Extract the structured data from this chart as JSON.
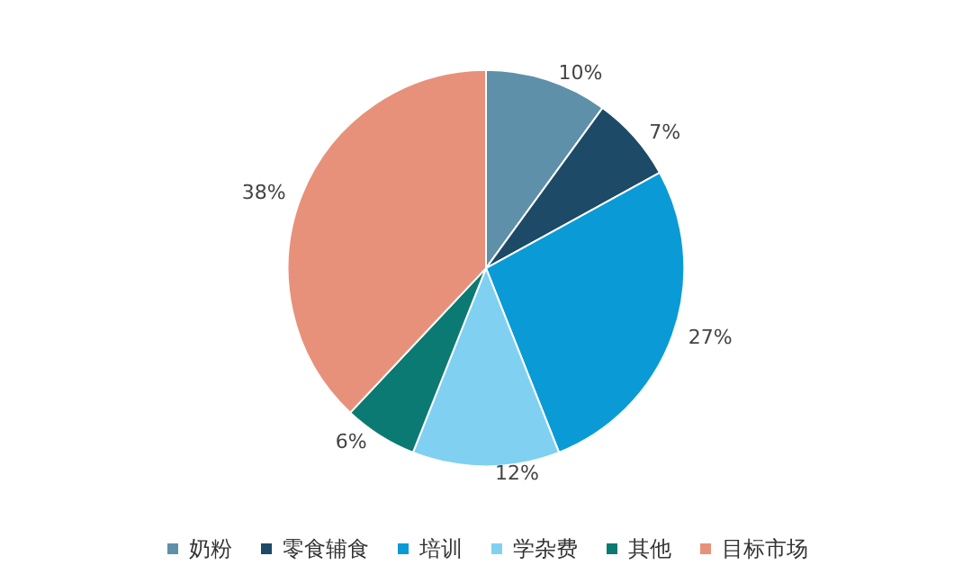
{
  "chart_data": {
    "type": "pie",
    "categories": [
      "奶粉",
      "零食辅食",
      "培训",
      "学杂费",
      "其他",
      "目标市场"
    ],
    "values": [
      10,
      7,
      27,
      12,
      6,
      38
    ],
    "colors": [
      "#5f90aa",
      "#1d4a66",
      "#0a9bd6",
      "#80d0f2",
      "#0b7a72",
      "#e8917a"
    ],
    "value_labels": [
      "10%",
      "7%",
      "27%",
      "12%",
      "6%",
      "38%"
    ],
    "legend": "bottom"
  }
}
